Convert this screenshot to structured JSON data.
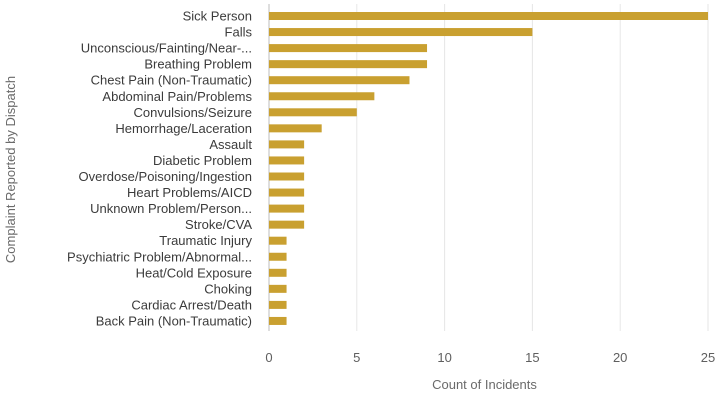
{
  "chart_data": {
    "type": "bar",
    "orientation": "horizontal",
    "categories": [
      "Sick Person",
      "Falls",
      "Unconscious/Fainting/Near-...",
      "Breathing Problem",
      "Chest Pain (Non-Traumatic)",
      "Abdominal Pain/Problems",
      "Convulsions/Seizure",
      "Hemorrhage/Laceration",
      "Assault",
      "Diabetic Problem",
      "Overdose/Poisoning/Ingestion",
      "Heart Problems/AICD",
      "Unknown Problem/Person...",
      "Stroke/CVA",
      "Traumatic Injury",
      "Psychiatric Problem/Abnormal...",
      "Heat/Cold Exposure",
      "Choking",
      "Cardiac Arrest/Death",
      "Back Pain (Non-Traumatic)"
    ],
    "values": [
      25,
      15,
      9,
      9,
      8,
      6,
      5,
      3,
      2,
      2,
      2,
      2,
      2,
      2,
      1,
      1,
      1,
      1,
      1,
      1
    ],
    "xlabel": "Count of Incidents",
    "ylabel": "Complaint Reported by Dispatch",
    "xlim": [
      0,
      25
    ],
    "xticks": [
      0,
      5,
      10,
      15,
      20,
      25
    ],
    "grid": true,
    "bar_color": "#c9a030"
  }
}
